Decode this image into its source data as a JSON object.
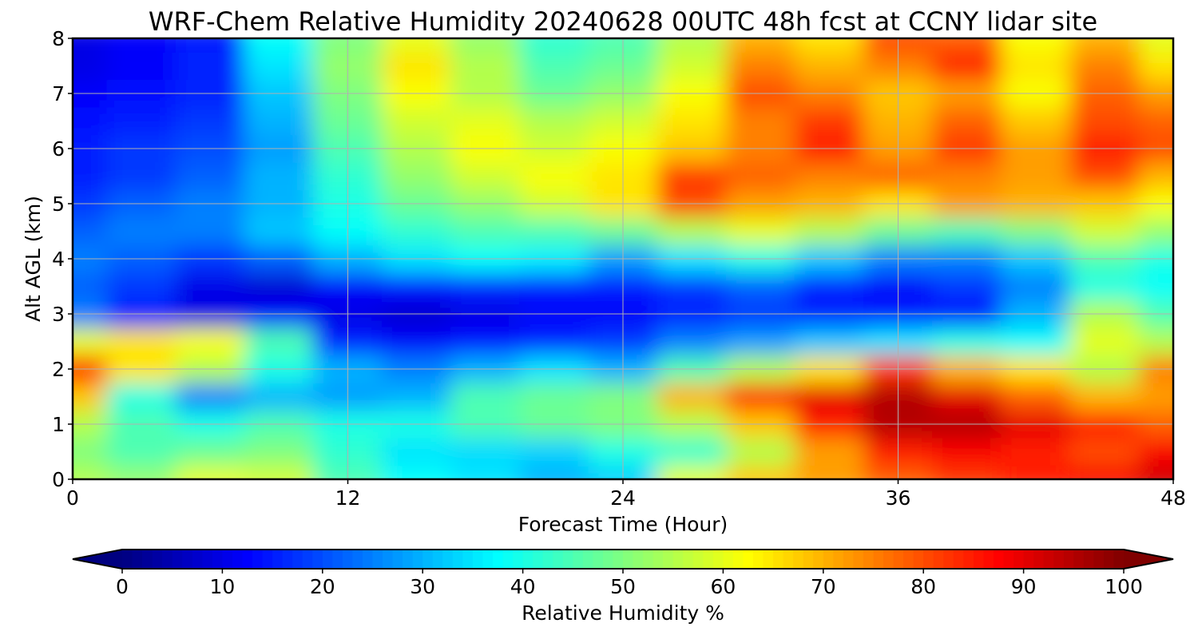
{
  "chart_data": {
    "type": "heatmap",
    "title": "WRF-Chem Relative Humidity 20240628 00UTC 48h fcst at CCNY lidar site",
    "xlabel": "Forecast Time (Hour)",
    "ylabel": "Alt AGL (km)",
    "x_ticks": [
      "0",
      "12",
      "24",
      "36",
      "48"
    ],
    "y_ticks": [
      "0",
      "1",
      "2",
      "3",
      "4",
      "5",
      "6",
      "7",
      "8"
    ],
    "xlim": [
      0,
      48
    ],
    "ylim": [
      0,
      8
    ],
    "grid": true,
    "colormap": "jet",
    "x": [
      0,
      3,
      6,
      9,
      12,
      15,
      18,
      21,
      24,
      27,
      30,
      33,
      36,
      39,
      42,
      45,
      48
    ],
    "y": [
      0,
      0.5,
      1,
      1.5,
      2,
      2.5,
      3,
      3.5,
      4,
      4.5,
      5,
      5.5,
      6,
      6.5,
      7,
      7.5,
      8
    ],
    "z": [
      [
        55,
        52,
        60,
        58,
        45,
        38,
        35,
        30,
        33,
        60,
        68,
        72,
        78,
        82,
        85,
        88,
        92
      ],
      [
        50,
        45,
        48,
        50,
        42,
        35,
        34,
        33,
        40,
        42,
        55,
        72,
        85,
        88,
        85,
        80,
        88
      ],
      [
        55,
        45,
        40,
        45,
        40,
        40,
        45,
        48,
        50,
        55,
        68,
        85,
        95,
        95,
        90,
        85,
        78
      ],
      [
        68,
        40,
        25,
        30,
        28,
        30,
        45,
        48,
        50,
        70,
        85,
        90,
        95,
        90,
        78,
        70,
        72
      ],
      [
        85,
        65,
        55,
        40,
        30,
        25,
        30,
        35,
        30,
        45,
        55,
        65,
        82,
        70,
        65,
        55,
        75
      ],
      [
        60,
        65,
        62,
        45,
        15,
        12,
        14,
        16,
        18,
        25,
        28,
        32,
        35,
        40,
        38,
        60,
        55
      ],
      [
        25,
        15,
        10,
        12,
        10,
        8,
        10,
        12,
        12,
        15,
        18,
        16,
        15,
        14,
        30,
        55,
        45
      ],
      [
        22,
        18,
        10,
        8,
        12,
        14,
        16,
        15,
        15,
        18,
        22,
        15,
        12,
        18,
        25,
        40,
        38
      ],
      [
        25,
        22,
        18,
        22,
        30,
        35,
        38,
        36,
        28,
        35,
        40,
        32,
        25,
        25,
        32,
        45,
        40
      ],
      [
        22,
        25,
        25,
        32,
        38,
        42,
        45,
        45,
        48,
        55,
        60,
        55,
        48,
        45,
        50,
        58,
        52
      ],
      [
        18,
        22,
        25,
        30,
        40,
        48,
        52,
        58,
        65,
        80,
        72,
        70,
        65,
        72,
        70,
        68,
        62
      ],
      [
        15,
        18,
        22,
        30,
        42,
        52,
        58,
        62,
        65,
        82,
        78,
        75,
        78,
        75,
        72,
        80,
        70
      ],
      [
        15,
        18,
        20,
        28,
        45,
        55,
        62,
        58,
        62,
        68,
        75,
        85,
        72,
        82,
        72,
        85,
        80
      ],
      [
        14,
        15,
        18,
        30,
        48,
        58,
        60,
        55,
        58,
        65,
        75,
        82,
        70,
        78,
        68,
        80,
        78
      ],
      [
        12,
        14,
        16,
        32,
        50,
        62,
        55,
        48,
        52,
        62,
        80,
        75,
        68,
        72,
        62,
        78,
        72
      ],
      [
        10,
        12,
        16,
        35,
        52,
        65,
        55,
        45,
        48,
        58,
        75,
        70,
        75,
        85,
        65,
        75,
        65
      ],
      [
        10,
        12,
        15,
        38,
        50,
        60,
        52,
        42,
        45,
        55,
        70,
        65,
        80,
        78,
        62,
        70,
        60
      ]
    ],
    "colorbar": {
      "label": "Relative Humidity %",
      "ticks": [
        "0",
        "10",
        "20",
        "30",
        "40",
        "50",
        "60",
        "70",
        "80",
        "90",
        "100"
      ],
      "range": [
        0,
        100
      ],
      "extend": "both"
    }
  }
}
